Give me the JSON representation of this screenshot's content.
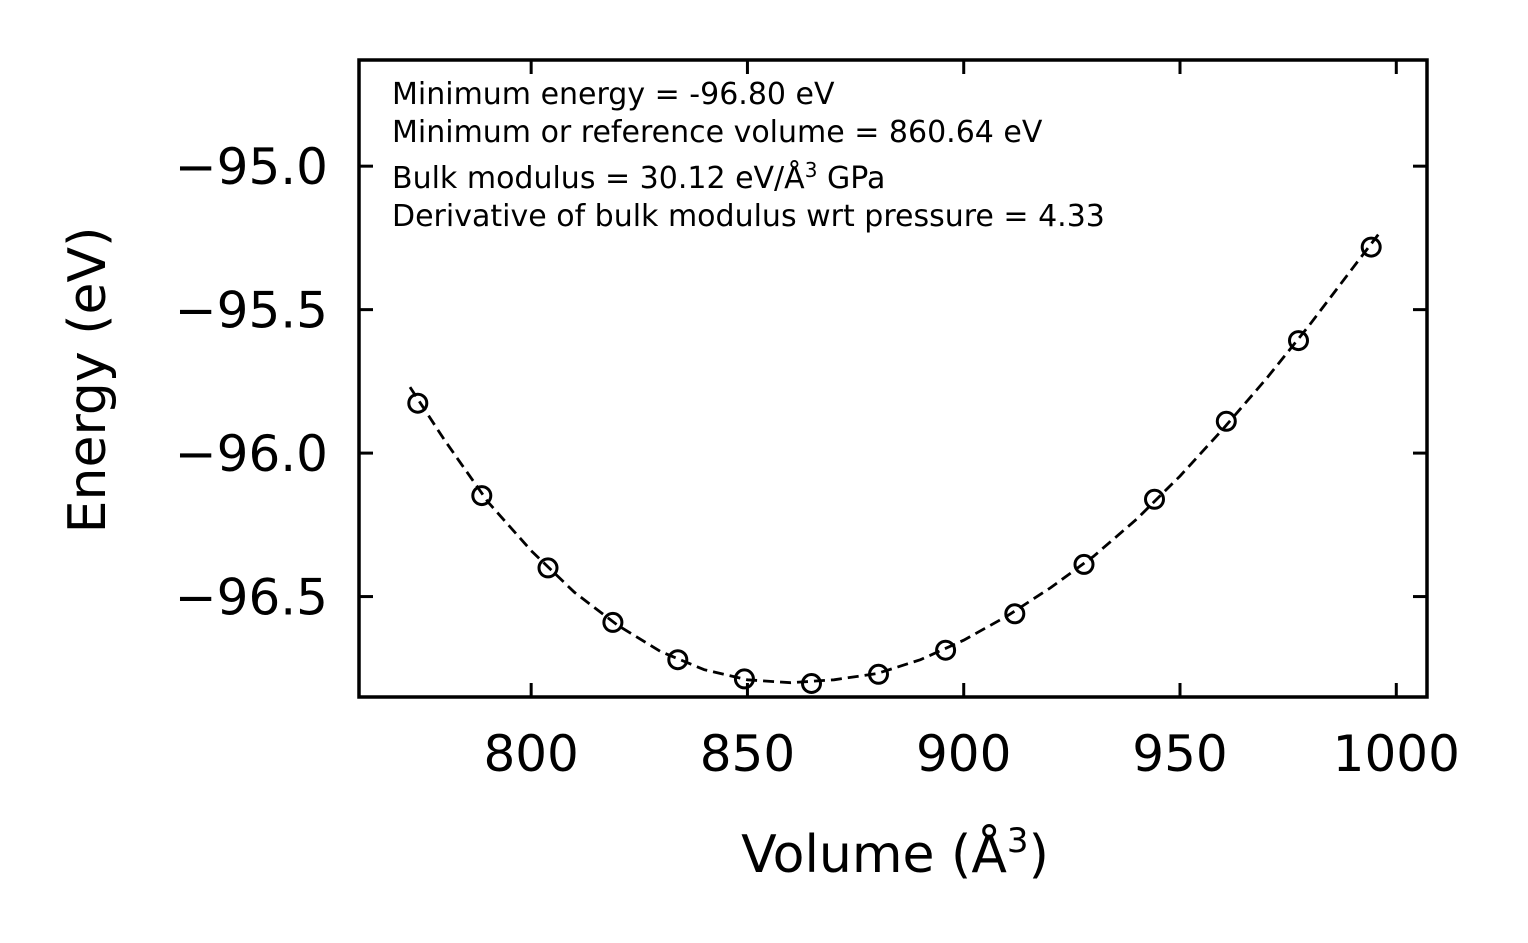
{
  "chart_data": {
    "type": "scatter",
    "title": "",
    "xlabel": "Volume (Å",
    "xlabel_sup": "3",
    "xlabel_suffix": ")",
    "ylabel": "Energy (eV)",
    "xlim": [
      760.2,
      1007.1
    ],
    "ylim": [
      -96.85,
      -94.63
    ],
    "xticks": [
      800,
      850,
      900,
      950,
      1000
    ],
    "xtick_labels": [
      "800",
      "850",
      "900",
      "950",
      "1000"
    ],
    "yticks": [
      -95.0,
      -95.5,
      -96.0,
      -96.5
    ],
    "ytick_labels": [
      "−95.0",
      "−95.5",
      "−96.0",
      "−96.5"
    ],
    "grid": false,
    "series": [
      {
        "name": "data",
        "style": "open-circle",
        "x": [
          773.8,
          788.6,
          803.9,
          818.9,
          833.9,
          849.3,
          864.8,
          880.3,
          895.8,
          911.8,
          927.8,
          944.1,
          960.7,
          977.4,
          994.2
        ],
        "y": [
          -95.826,
          -96.148,
          -96.4,
          -96.59,
          -96.72,
          -96.787,
          -96.803,
          -96.771,
          -96.687,
          -96.56,
          -96.388,
          -96.161,
          -95.889,
          -95.608,
          -95.282
        ]
      },
      {
        "name": "fit",
        "style": "dashed-line",
        "x": [
          772,
          780,
          790,
          800,
          810,
          820,
          830,
          840,
          850,
          860,
          870,
          880,
          890,
          900,
          910,
          920,
          930,
          940,
          950,
          960,
          970,
          980,
          990,
          996
        ],
        "y": [
          -95.77,
          -95.955,
          -96.17,
          -96.34,
          -96.485,
          -96.6,
          -96.692,
          -96.755,
          -96.79,
          -96.8,
          -96.79,
          -96.768,
          -96.72,
          -96.652,
          -96.568,
          -96.47,
          -96.36,
          -96.23,
          -96.08,
          -95.915,
          -95.74,
          -95.552,
          -95.354,
          -95.235
        ]
      }
    ],
    "annotations": [
      "Minimum energy = -96.80 eV",
      "Minimum or reference volume = 860.64 eV",
      "Bulk modulus = 30.12 eV/Å",
      "Derivative of bulk modulus wrt pressure = 4.33"
    ],
    "annotation_bulk_sup": "3",
    "annotation_bulk_suffix": " GPa"
  }
}
